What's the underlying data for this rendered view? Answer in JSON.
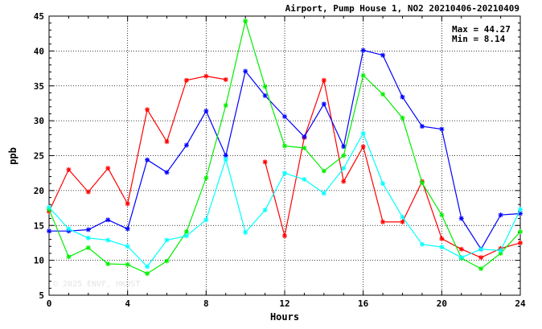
{
  "chart_data": {
    "type": "line",
    "title": "Airport, Pump House 1, NO2 20210406-20210409",
    "xlabel": "Hours",
    "ylabel": "ppb",
    "xlim": [
      0,
      24
    ],
    "ylim": [
      5,
      45
    ],
    "xticks": [
      0,
      4,
      8,
      12,
      16,
      20,
      24
    ],
    "yticks": [
      5,
      10,
      15,
      20,
      25,
      30,
      35,
      40,
      45
    ],
    "grid": true,
    "annotations": {
      "max": "Max = 44.27",
      "min": "Min =  8.14"
    },
    "watermark": "© 2025  ENVF, HKUST",
    "x": [
      0,
      1,
      2,
      3,
      4,
      5,
      6,
      7,
      8,
      9,
      10,
      11,
      12,
      13,
      14,
      15,
      16,
      17,
      18,
      19,
      20,
      21,
      22,
      23,
      24
    ],
    "series": [
      {
        "color": "#ff0000",
        "values": [
          17.0,
          23.0,
          19.8,
          23.2,
          18.1,
          31.6,
          27.0,
          35.8,
          36.4,
          35.9,
          null,
          24.1,
          13.5,
          27.6,
          35.8,
          21.3,
          26.3,
          15.5,
          15.5,
          21.3,
          13.1,
          11.6,
          10.4,
          11.7,
          12.5
        ]
      },
      {
        "color": "#0000ff",
        "values": [
          14.2,
          14.2,
          14.4,
          15.8,
          14.5,
          24.4,
          22.6,
          26.5,
          31.4,
          25.0,
          37.1,
          33.6,
          30.6,
          27.7,
          32.4,
          26.3,
          40.1,
          39.4,
          33.4,
          29.2,
          28.8,
          16.0,
          11.6,
          16.5,
          16.7
        ]
      },
      {
        "color": "#00ee00",
        "values": [
          17.3,
          10.5,
          11.8,
          9.5,
          9.4,
          8.1,
          9.9,
          14.1,
          21.8,
          32.2,
          44.3,
          34.9,
          26.4,
          26.1,
          22.8,
          25.0,
          36.5,
          33.8,
          30.4,
          21.1,
          16.5,
          10.3,
          8.8,
          11.0,
          14.1
        ]
      },
      {
        "color": "#00ffff",
        "values": [
          17.6,
          14.5,
          13.2,
          12.9,
          12.0,
          9.1,
          12.9,
          13.5,
          15.8,
          24.5,
          14.0,
          17.2,
          22.5,
          21.6,
          19.6,
          23.2,
          28.2,
          21.0,
          16.2,
          12.3,
          11.9,
          10.4,
          11.6,
          11.4,
          17.3
        ]
      }
    ]
  }
}
